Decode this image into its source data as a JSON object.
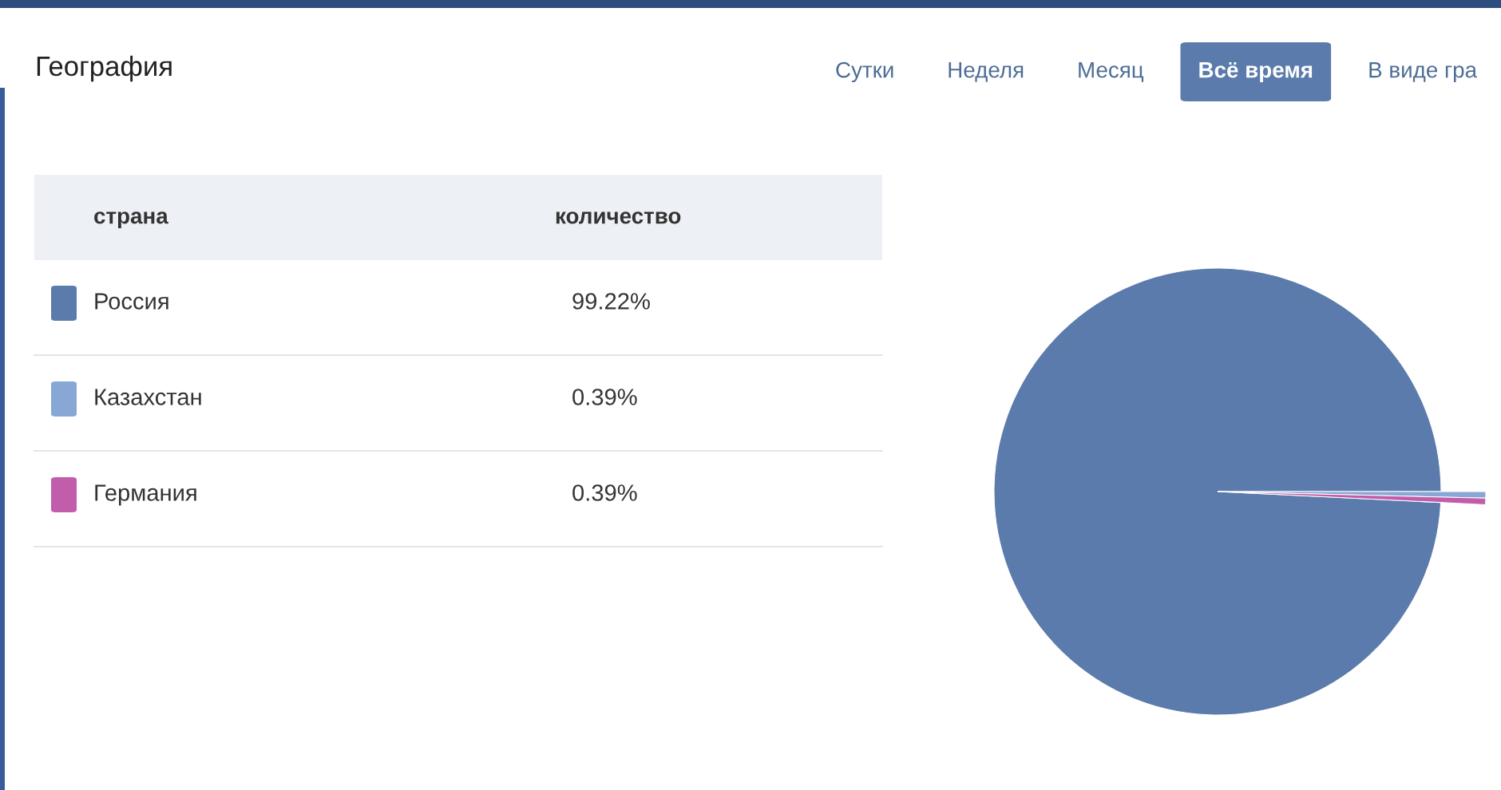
{
  "chart_data": {
    "type": "pie",
    "title": "География",
    "legend_title": "страна",
    "categories": [
      "Россия",
      "Казахстан",
      "Германия"
    ],
    "values": [
      99.22,
      0.39,
      0.39
    ],
    "colors": [
      "#5a7bab",
      "#88a7d4",
      "#c25dab"
    ],
    "value_labels": [
      "99.22%",
      "0.39%",
      "0.39%"
    ],
    "legend": "left",
    "annotations": [
      "Сутки",
      "Неделя",
      "Месяц",
      "Всё время",
      "В виде гра",
      "количество"
    ]
  }
}
